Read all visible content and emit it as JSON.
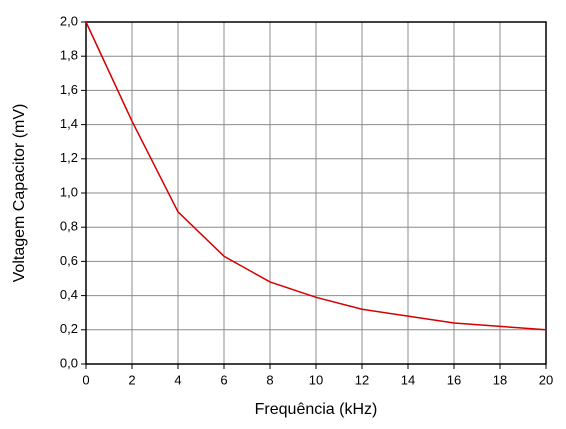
{
  "chart_data": {
    "type": "line",
    "xlabel": "Frequência (kHz)",
    "ylabel": "Voltagem Capacitor (mV)",
    "x": [
      0,
      2,
      4,
      6,
      8,
      10,
      12,
      14,
      16,
      18,
      20
    ],
    "series": [
      {
        "color": "#d40000",
        "values": [
          2.0,
          1.42,
          0.89,
          0.63,
          0.48,
          0.39,
          0.32,
          0.28,
          0.24,
          0.22,
          0.2
        ]
      }
    ],
    "xlim": [
      0,
      20
    ],
    "xticks": [
      0,
      2,
      4,
      6,
      8,
      10,
      12,
      14,
      16,
      18,
      20
    ],
    "ylim": [
      0,
      2.0
    ],
    "yticks": [
      {
        "value": 0,
        "label": "0,0"
      },
      {
        "value": 0.2,
        "label": "0,2"
      },
      {
        "value": 0.4,
        "label": "0,4"
      },
      {
        "value": 0.6,
        "label": "0,6"
      },
      {
        "value": 0.8,
        "label": "0,8"
      },
      {
        "value": 1.0,
        "label": "1,0"
      },
      {
        "value": 1.2,
        "label": "1,2"
      },
      {
        "value": 1.4,
        "label": "1,4"
      },
      {
        "value": 1.6,
        "label": "1,6"
      },
      {
        "value": 1.8,
        "label": "1,8"
      },
      {
        "value": 2.0,
        "label": "2,0"
      }
    ],
    "grid": true
  }
}
